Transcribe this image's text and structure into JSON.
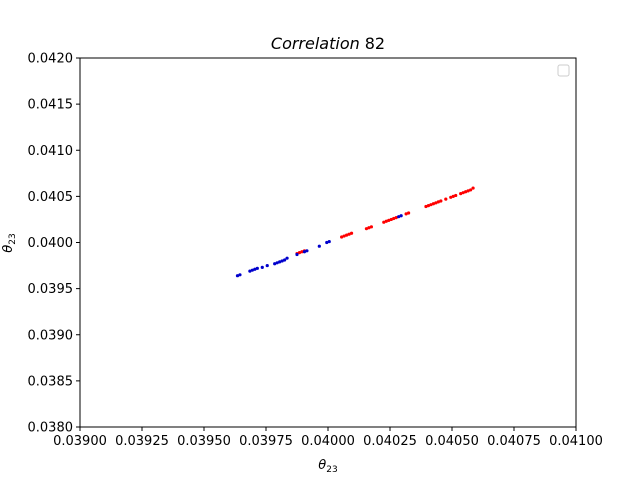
{
  "chart_data": {
    "type": "scatter",
    "title": {
      "italic": "Correlation",
      "number": "82"
    },
    "xlabel": {
      "base": "θ",
      "sub": "23"
    },
    "ylabel": {
      "base": "θ",
      "sub": "23"
    },
    "xlim": [
      0.039,
      0.041
    ],
    "ylim": [
      0.038,
      0.042
    ],
    "x_ticks": [
      0.039,
      0.03925,
      0.0395,
      0.03975,
      0.04,
      0.04025,
      0.0405,
      0.04075,
      0.041
    ],
    "x_tick_labels": [
      "0.03900",
      "0.03925",
      "0.03950",
      "0.03975",
      "0.04000",
      "0.04025",
      "0.04050",
      "0.04075",
      "0.04100"
    ],
    "y_ticks": [
      0.038,
      0.0385,
      0.039,
      0.0395,
      0.04,
      0.0405,
      0.041,
      0.0415,
      0.042
    ],
    "y_tick_labels": [
      "0.0380",
      "0.0385",
      "0.0390",
      "0.0395",
      "0.0400",
      "0.0405",
      "0.0410",
      "0.0415",
      "0.0420"
    ],
    "grid": false,
    "legend": {
      "placement": "top-right",
      "entries": []
    },
    "series": [
      {
        "color": "#ff0000",
        "points": [
          [
            0.039875,
            0.03988
          ],
          [
            0.039885,
            0.03989
          ],
          [
            0.039895,
            0.0399
          ],
          [
            0.039905,
            0.03991
          ],
          [
            0.040055,
            0.04006
          ],
          [
            0.040065,
            0.04007
          ],
          [
            0.040075,
            0.04008
          ],
          [
            0.040085,
            0.04009
          ],
          [
            0.040095,
            0.0401
          ],
          [
            0.040155,
            0.04015
          ],
          [
            0.040165,
            0.04016
          ],
          [
            0.040175,
            0.04017
          ],
          [
            0.040225,
            0.04022
          ],
          [
            0.040235,
            0.04023
          ],
          [
            0.040245,
            0.04024
          ],
          [
            0.040255,
            0.04025
          ],
          [
            0.040265,
            0.04026
          ],
          [
            0.040275,
            0.04027
          ],
          [
            0.040315,
            0.04031
          ],
          [
            0.040325,
            0.04032
          ],
          [
            0.040395,
            0.04039
          ],
          [
            0.040405,
            0.0404
          ],
          [
            0.040415,
            0.04041
          ],
          [
            0.040425,
            0.04042
          ],
          [
            0.040435,
            0.04043
          ],
          [
            0.040445,
            0.04044
          ],
          [
            0.040455,
            0.04045
          ],
          [
            0.040475,
            0.04047
          ],
          [
            0.040495,
            0.04049
          ],
          [
            0.040505,
            0.0405
          ],
          [
            0.040515,
            0.04051
          ],
          [
            0.040535,
            0.04053
          ],
          [
            0.040545,
            0.04054
          ],
          [
            0.040555,
            0.04055
          ],
          [
            0.040565,
            0.04056
          ],
          [
            0.040575,
            0.04057
          ],
          [
            0.040585,
            0.04059
          ]
        ]
      },
      {
        "color": "#0000cc",
        "points": [
          [
            0.039635,
            0.03964
          ],
          [
            0.039645,
            0.03965
          ],
          [
            0.039685,
            0.03969
          ],
          [
            0.039695,
            0.0397
          ],
          [
            0.039705,
            0.03971
          ],
          [
            0.039715,
            0.03972
          ],
          [
            0.039735,
            0.03973
          ],
          [
            0.039755,
            0.03975
          ],
          [
            0.039785,
            0.03977
          ],
          [
            0.039795,
            0.03978
          ],
          [
            0.039805,
            0.03979
          ],
          [
            0.039815,
            0.0398
          ],
          [
            0.039825,
            0.03981
          ],
          [
            0.039835,
            0.03983
          ],
          [
            0.039875,
            0.03987
          ],
          [
            0.039905,
            0.0399
          ],
          [
            0.039915,
            0.03991
          ],
          [
            0.039965,
            0.03996
          ],
          [
            0.039995,
            0.04
          ],
          [
            0.040005,
            0.04001
          ],
          [
            0.040285,
            0.04028
          ],
          [
            0.040295,
            0.04029
          ]
        ]
      }
    ]
  }
}
